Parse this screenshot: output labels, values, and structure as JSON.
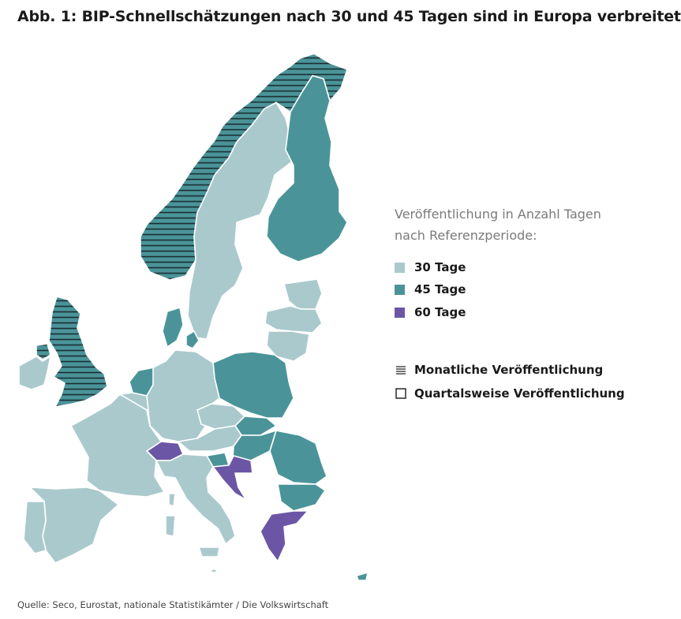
{
  "title": "Abb. 1: BIP-Schnellschätzungen nach 30 und 45 Tagen sind in Europa verbreitet",
  "legend": {
    "heading_line1": "Veröffentlichung in Anzahl Tagen",
    "heading_line2": "nach Referenzperiode:",
    "items": [
      {
        "label": "30 Tage",
        "color": "#aac9cd"
      },
      {
        "label": "45 Tage",
        "color": "#4a9499"
      },
      {
        "label": "60 Tage",
        "color": "#6b56a6"
      }
    ],
    "pattern_items": [
      {
        "label": "Monatliche Veröffentlichung",
        "icon": "hatch-lines-icon"
      },
      {
        "label": "Quartalsweise Veröffentlichung",
        "icon": "empty-square-icon"
      }
    ]
  },
  "colors": {
    "days_30": "#aac9cd",
    "days_45": "#4a9499",
    "days_60": "#6b56a6",
    "border": "#ffffff",
    "hatch": "#1a2e33"
  },
  "source": "Quelle: Seco, Eurostat, nationale Statistikämter / Die Volkswirtschaft"
}
